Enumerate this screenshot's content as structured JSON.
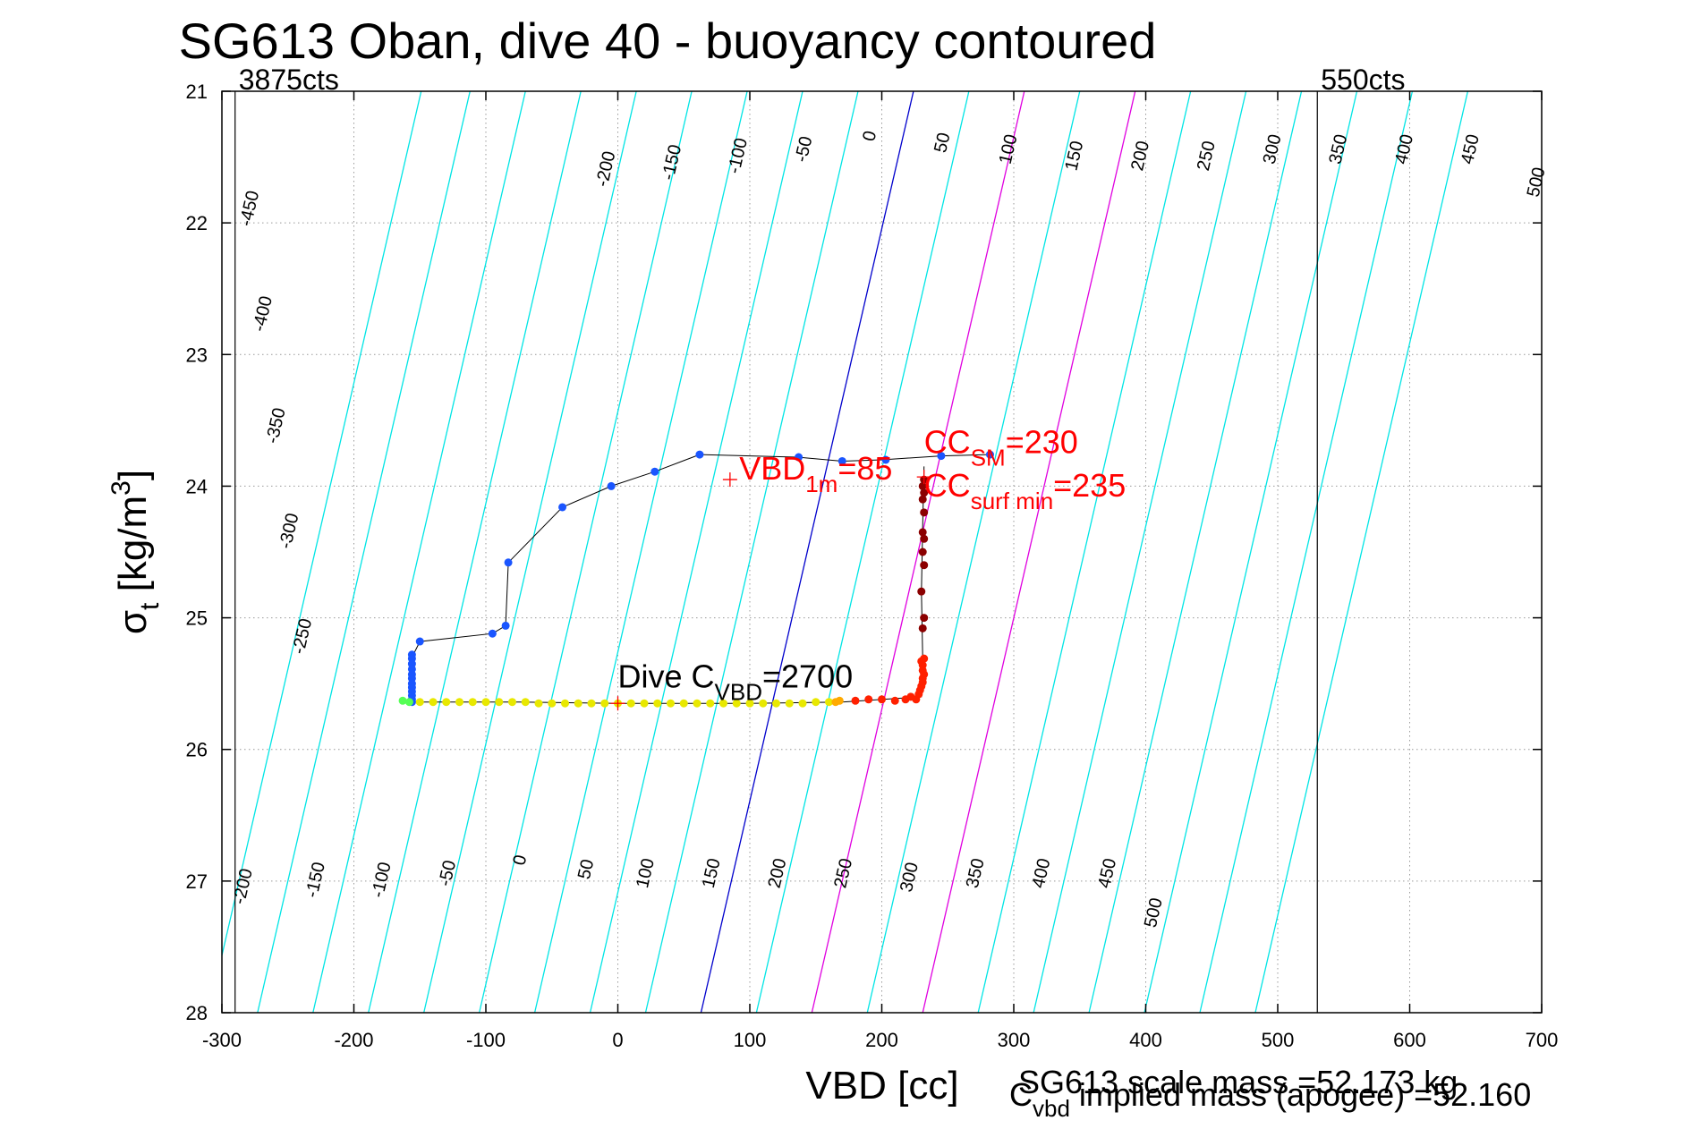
{
  "chart_data": {
    "type": "scatter",
    "title": "SG613 Oban, dive 40 - buoyancy contoured",
    "xlabel": "VBD [cc]",
    "ylabel": {
      "main": "σ",
      "sub": "t",
      "units": " [kg/m",
      "sup": "3",
      "close": "]"
    },
    "xlim": [
      -300,
      700
    ],
    "ylim": [
      21,
      28
    ],
    "y_reversed": true,
    "xticks": [
      -300,
      -200,
      -100,
      0,
      100,
      200,
      300,
      400,
      500,
      600,
      700
    ],
    "yticks": [
      21,
      22,
      23,
      24,
      25,
      26,
      27,
      28
    ],
    "grid": true,
    "limit_lines": [
      {
        "x": -290,
        "label": "3875cts"
      },
      {
        "x": 530,
        "label": "550cts"
      }
    ],
    "buoyancy_contours": {
      "levels": [
        -450,
        -400,
        -350,
        -300,
        -250,
        -200,
        -150,
        -100,
        -50,
        0,
        50,
        100,
        150,
        200,
        250,
        300,
        350,
        400,
        450,
        500
      ],
      "vbd_at_sigma_28": [
        -310,
        -273,
        -231,
        -189,
        -147,
        -105,
        -63,
        -21,
        21,
        63,
        105,
        147,
        189,
        231,
        273,
        315,
        357,
        399,
        441,
        483
      ],
      "vbd_per_sigma": -23,
      "line_colors": {
        "normal": "#00e5e5",
        "zero": "#0000cc",
        "highlight": "#e000e0"
      },
      "highlight_levels": [
        100,
        200
      ],
      "top_labels": [
        {
          "level": -450,
          "vbd": -275,
          "sigma": 21.9
        },
        {
          "level": -200,
          "vbd": -5,
          "sigma": 21.6
        },
        {
          "level": -150,
          "vbd": 45,
          "sigma": 21.55
        },
        {
          "level": -100,
          "vbd": 95,
          "sigma": 21.5
        },
        {
          "level": -50,
          "vbd": 145,
          "sigma": 21.45
        },
        {
          "level": 0,
          "vbd": 195,
          "sigma": 21.35
        },
        {
          "level": 50,
          "vbd": 250,
          "sigma": 21.4
        },
        {
          "level": 100,
          "vbd": 300,
          "sigma": 21.45
        },
        {
          "level": 150,
          "vbd": 350,
          "sigma": 21.5
        },
        {
          "level": 200,
          "vbd": 400,
          "sigma": 21.5
        },
        {
          "level": 250,
          "vbd": 450,
          "sigma": 21.5
        },
        {
          "level": 300,
          "vbd": 500,
          "sigma": 21.45
        },
        {
          "level": 350,
          "vbd": 550,
          "sigma": 21.45
        },
        {
          "level": 400,
          "vbd": 600,
          "sigma": 21.45
        },
        {
          "level": 450,
          "vbd": 650,
          "sigma": 21.45
        },
        {
          "level": 500,
          "vbd": 700,
          "sigma": 21.7
        }
      ],
      "left_labels": [
        {
          "level": -400,
          "vbd": -265,
          "sigma": 22.7
        },
        {
          "level": -350,
          "vbd": -255,
          "sigma": 23.55
        },
        {
          "level": -300,
          "vbd": -245,
          "sigma": 24.35
        },
        {
          "level": -250,
          "vbd": -235,
          "sigma": 25.15
        }
      ],
      "bottom_labels": [
        {
          "level": -200,
          "vbd": -280,
          "sigma": 27.05
        },
        {
          "level": -150,
          "vbd": -225,
          "sigma": 27.0
        },
        {
          "level": -100,
          "vbd": -175,
          "sigma": 27.0
        },
        {
          "level": -50,
          "vbd": -125,
          "sigma": 26.95
        },
        {
          "level": 0,
          "vbd": -70,
          "sigma": 26.85
        },
        {
          "level": 50,
          "vbd": -20,
          "sigma": 26.92
        },
        {
          "level": 100,
          "vbd": 25,
          "sigma": 26.95
        },
        {
          "level": 150,
          "vbd": 75,
          "sigma": 26.95
        },
        {
          "level": 200,
          "vbd": 125,
          "sigma": 26.95
        },
        {
          "level": 250,
          "vbd": 175,
          "sigma": 26.95
        },
        {
          "level": 300,
          "vbd": 225,
          "sigma": 26.98
        },
        {
          "level": 350,
          "vbd": 275,
          "sigma": 26.95
        },
        {
          "level": 400,
          "vbd": 325,
          "sigma": 26.95
        },
        {
          "level": 450,
          "vbd": 375,
          "sigma": 26.95
        },
        {
          "level": 500,
          "vbd": 410,
          "sigma": 27.25
        }
      ]
    },
    "profile_line": [
      [
        282,
        23.76
      ],
      [
        245,
        23.77
      ],
      [
        200,
        23.8
      ],
      [
        170,
        23.81
      ],
      [
        137,
        23.78
      ],
      [
        62,
        23.76
      ],
      [
        28,
        23.89
      ],
      [
        -5,
        24.0
      ],
      [
        -42,
        24.16
      ],
      [
        -83,
        24.58
      ],
      [
        -85,
        25.06
      ],
      [
        -95,
        25.12
      ],
      [
        -150,
        25.18
      ],
      [
        -155,
        25.28
      ],
      [
        -155,
        25.62
      ],
      [
        -163,
        25.64
      ],
      [
        -75,
        25.64
      ],
      [
        0,
        25.65
      ],
      [
        100,
        25.65
      ],
      [
        170,
        25.64
      ],
      [
        230,
        25.6
      ],
      [
        231,
        25.3
      ],
      [
        230,
        24.8
      ],
      [
        231,
        24.3
      ],
      [
        232,
        23.85
      ]
    ],
    "points_blue": [
      [
        282,
        23.76
      ],
      [
        245,
        23.77
      ],
      [
        203,
        23.8
      ],
      [
        170,
        23.81
      ],
      [
        137,
        23.78
      ],
      [
        62,
        23.76
      ],
      [
        28,
        23.89
      ],
      [
        -5,
        24.0
      ],
      [
        -42,
        24.16
      ],
      [
        -83,
        24.58
      ],
      [
        -85,
        25.06
      ],
      [
        -95,
        25.12
      ],
      [
        -150,
        25.18
      ],
      [
        -156,
        25.28
      ],
      [
        -156,
        25.31
      ],
      [
        -156,
        25.35
      ],
      [
        -156,
        25.39
      ],
      [
        -156,
        25.43
      ],
      [
        -156,
        25.46
      ],
      [
        -156,
        25.5
      ],
      [
        -156,
        25.53
      ],
      [
        -156,
        25.56
      ],
      [
        -156,
        25.59
      ],
      [
        -156,
        25.62
      ],
      [
        -156,
        25.64
      ]
    ],
    "points_green": [
      [
        -163,
        25.63
      ],
      [
        -158,
        25.64
      ]
    ],
    "points_yellow": [
      [
        -150,
        25.64
      ],
      [
        -140,
        25.64
      ],
      [
        -130,
        25.64
      ],
      [
        -120,
        25.64
      ],
      [
        -110,
        25.64
      ],
      [
        -100,
        25.64
      ],
      [
        -90,
        25.64
      ],
      [
        -80,
        25.64
      ],
      [
        -70,
        25.64
      ],
      [
        -60,
        25.65
      ],
      [
        -50,
        25.65
      ],
      [
        -40,
        25.65
      ],
      [
        -30,
        25.65
      ],
      [
        -20,
        25.65
      ],
      [
        -10,
        25.65
      ],
      [
        0,
        25.65
      ],
      [
        10,
        25.65
      ],
      [
        20,
        25.65
      ],
      [
        30,
        25.65
      ],
      [
        40,
        25.65
      ],
      [
        50,
        25.65
      ],
      [
        60,
        25.65
      ],
      [
        70,
        25.65
      ],
      [
        80,
        25.65
      ],
      [
        90,
        25.65
      ],
      [
        100,
        25.65
      ],
      [
        110,
        25.65
      ],
      [
        120,
        25.65
      ],
      [
        130,
        25.65
      ],
      [
        140,
        25.65
      ],
      [
        150,
        25.64
      ],
      [
        160,
        25.64
      ]
    ],
    "points_orange": [
      [
        165,
        25.64
      ],
      [
        168,
        25.63
      ]
    ],
    "points_red": [
      [
        180,
        25.63
      ],
      [
        190,
        25.62
      ],
      [
        200,
        25.62
      ],
      [
        210,
        25.63
      ],
      [
        218,
        25.62
      ],
      [
        222,
        25.6
      ],
      [
        226,
        25.62
      ],
      [
        228,
        25.58
      ],
      [
        229,
        25.55
      ],
      [
        230,
        25.52
      ],
      [
        231,
        25.49
      ],
      [
        231,
        25.46
      ],
      [
        232,
        25.43
      ],
      [
        231,
        25.4
      ],
      [
        231,
        25.36
      ],
      [
        230,
        25.33
      ],
      [
        232,
        25.31
      ]
    ],
    "points_darkred": [
      [
        231,
        25.08
      ],
      [
        232,
        25.0
      ],
      [
        230,
        24.8
      ],
      [
        232,
        24.6
      ],
      [
        231,
        24.5
      ],
      [
        232,
        24.4
      ],
      [
        231,
        24.35
      ],
      [
        232,
        24.2
      ],
      [
        231,
        24.1
      ],
      [
        232,
        24.05
      ],
      [
        231,
        24.0
      ],
      [
        232,
        23.95
      ]
    ],
    "markers": [
      {
        "label": "VBD_1m",
        "vbd": 85,
        "sigma": 23.95,
        "color": "#ff0000"
      },
      {
        "label": "CC_surf",
        "vbd": 232,
        "sigma": 23.93,
        "color": "#ff0000"
      },
      {
        "label": "Dive",
        "vbd": 0,
        "sigma": 25.65,
        "color": "#ff0000"
      }
    ],
    "annotations": [
      {
        "id": "vbd1m",
        "text": "VBD",
        "sub": "1m",
        "tail": "=85",
        "color": "#ff0000",
        "vbd": 92,
        "sigma": 23.95
      },
      {
        "id": "ccsm",
        "text": "CC",
        "sub": "SM",
        "tail": "=230",
        "color": "#ff0000",
        "vbd": 232,
        "sigma": 23.75
      },
      {
        "id": "ccsurf",
        "text": "CC",
        "sub": "surf min",
        "tail": "=235",
        "color": "#ff0000",
        "vbd": 232,
        "sigma": 24.08
      },
      {
        "id": "dive",
        "text": "Dive C",
        "sub": "VBD",
        "tail": "=2700",
        "color": "#000000",
        "vbd": 0,
        "sigma": 25.53
      }
    ]
  },
  "footer": {
    "mass_line1": "SG613 scale mass =52.173 kg",
    "mass_line2_prefix": "C",
    "mass_line2_sub": "vbd",
    "mass_line2_tail": " implied mass (apogee) =52.160"
  }
}
